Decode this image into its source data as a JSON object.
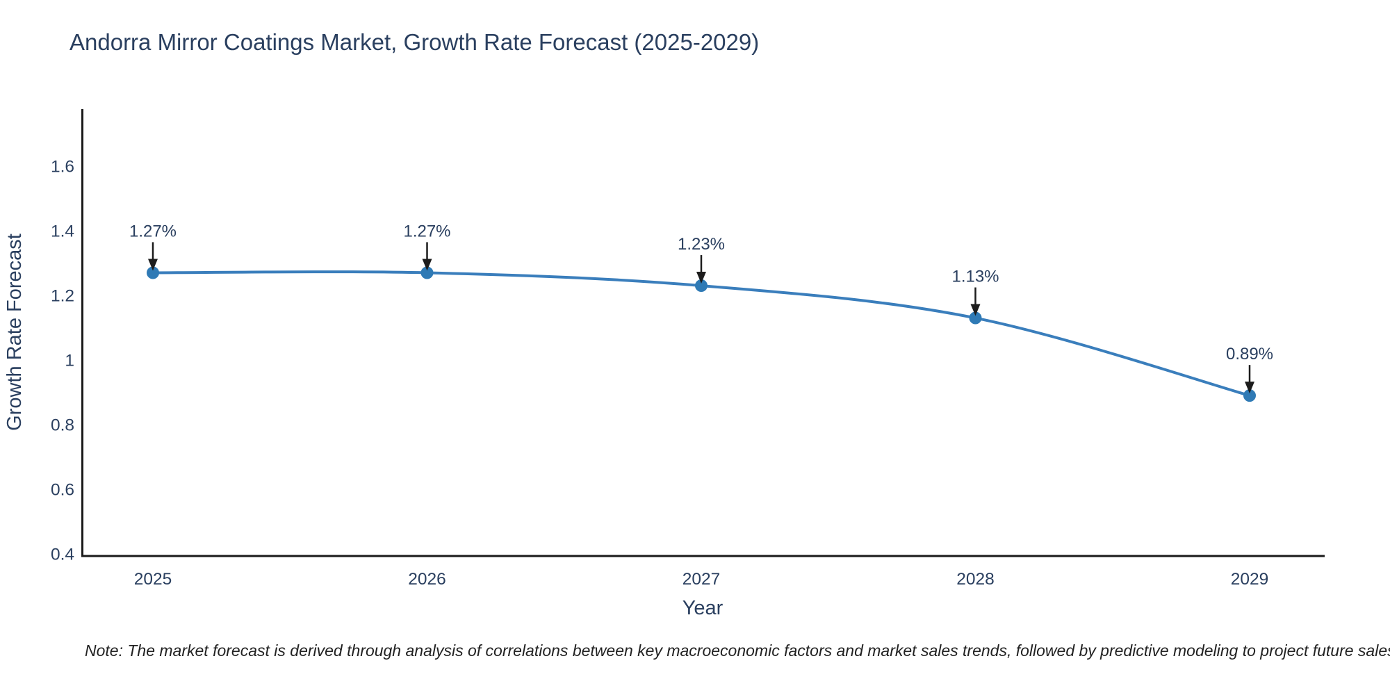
{
  "footnote": "Note: The market forecast is derived through analysis of correlations between key macroeconomic factors and market sales trends, followed by predictive modeling to project future sales",
  "chart_data": {
    "type": "line",
    "title": "Andorra Mirror Coatings Market, Growth Rate Forecast (2025-2029)",
    "xlabel": "Year",
    "ylabel": "Growth Rate Forecast",
    "x": [
      "2025",
      "2026",
      "2027",
      "2028",
      "2029"
    ],
    "series": [
      {
        "name": "Growth Rate Forecast",
        "values": [
          1.27,
          1.27,
          1.23,
          1.13,
          0.89
        ]
      }
    ],
    "point_labels": [
      "1.27%",
      "1.27%",
      "1.23%",
      "1.13%",
      "0.89%"
    ],
    "ytick_values": [
      0.4,
      0.6,
      0.8,
      1,
      1.2,
      1.4,
      1.6
    ],
    "ytick_labels": [
      "0.4",
      "0.6",
      "0.8",
      "1",
      "1.2",
      "1.4",
      "1.6"
    ],
    "ylim": [
      0.4,
      1.78
    ],
    "grid": false,
    "legend": "none",
    "line_shape": "spline",
    "line_color": "#3a7ebc",
    "marker_color": "#2f7ab5",
    "arrow_color": "#1c1c1c",
    "axis_color": "#1a1a1a",
    "text_color": "#2a3f5f"
  }
}
